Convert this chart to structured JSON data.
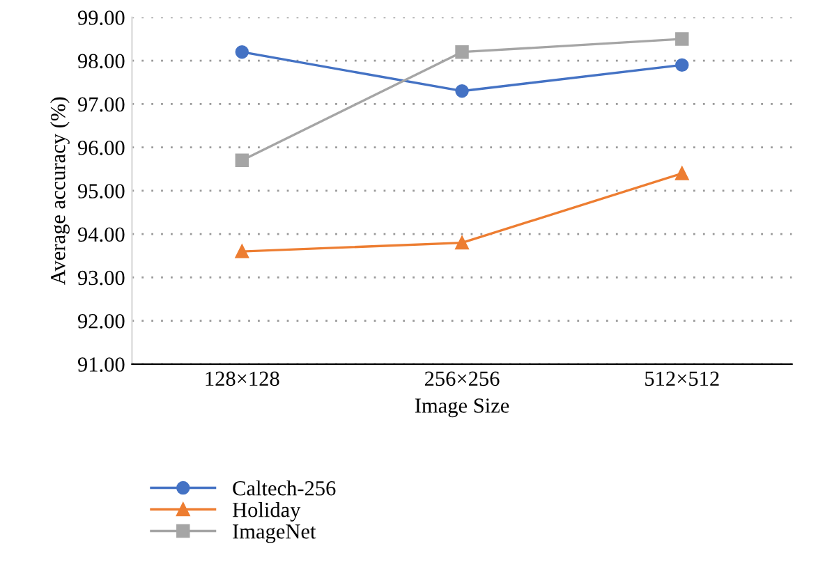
{
  "chart_data": {
    "type": "line",
    "xlabel": "Image Size",
    "ylabel": "Average accuracy (%)",
    "categories": [
      "128×128",
      "256×256",
      "512×512"
    ],
    "series": [
      {
        "name": "Caltech-256",
        "color": "#4472c4",
        "values": [
          98.2,
          97.3,
          97.9
        ],
        "marker": "circle"
      },
      {
        "name": "Holiday",
        "color": "#ed7d31",
        "values": [
          93.6,
          93.8,
          95.4
        ],
        "marker": "triangle"
      },
      {
        "name": "ImageNet",
        "color": "#a5a5a5",
        "values": [
          95.7,
          98.2,
          98.5
        ],
        "marker": "square"
      }
    ],
    "ylim": [
      91,
      99
    ],
    "yticks": [
      {
        "value": 91,
        "label": "91.00"
      },
      {
        "value": 92,
        "label": "92.00"
      },
      {
        "value": 93,
        "label": "93.00"
      },
      {
        "value": 94,
        "label": "94.00"
      },
      {
        "value": 95,
        "label": "95.00"
      },
      {
        "value": 96,
        "label": "96.00"
      },
      {
        "value": 97,
        "label": "97.00"
      },
      {
        "value": 98,
        "label": "98.00"
      },
      {
        "value": 99,
        "label": "99.00"
      }
    ],
    "grid": "y",
    "legend": "bottom",
    "line_style": "solid"
  }
}
